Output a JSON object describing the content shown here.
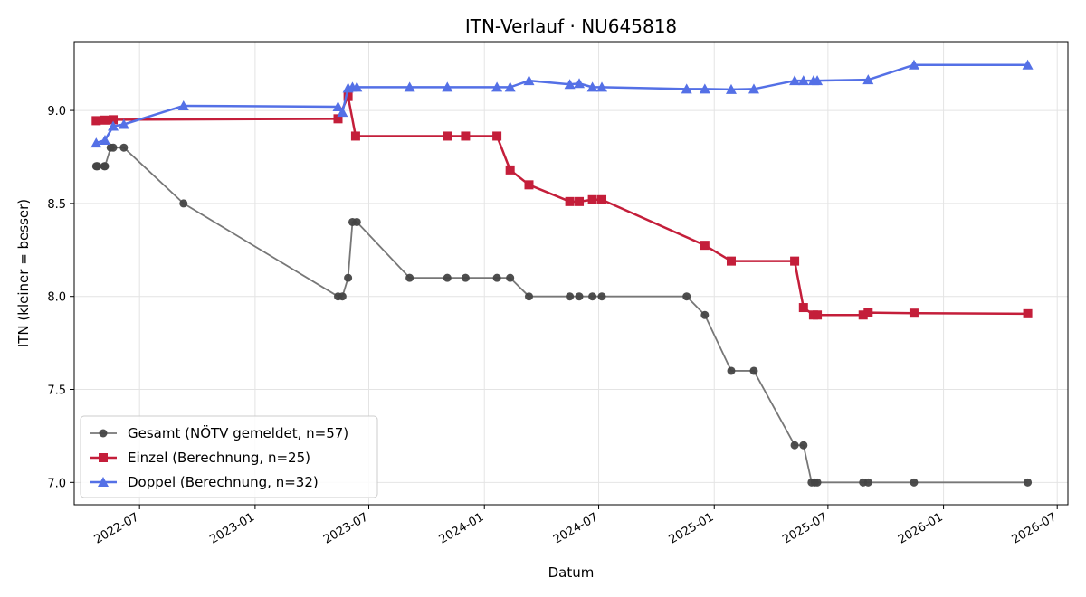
{
  "chart_data": {
    "type": "line",
    "title": "ITN-Verlauf · NU645818",
    "xlabel": "Datum",
    "ylabel": "ITN  (kleiner = besser)",
    "xlim": [
      "2022-03-19",
      "2026-07-18"
    ],
    "ylim": [
      6.88,
      9.37
    ],
    "x_ticks": [
      {
        "date": "2022-07-01",
        "label": "2022-07"
      },
      {
        "date": "2023-01-01",
        "label": "2023-01"
      },
      {
        "date": "2023-07-01",
        "label": "2023-07"
      },
      {
        "date": "2024-01-01",
        "label": "2024-01"
      },
      {
        "date": "2024-07-01",
        "label": "2024-07"
      },
      {
        "date": "2025-01-01",
        "label": "2025-01"
      },
      {
        "date": "2025-07-01",
        "label": "2025-07"
      },
      {
        "date": "2026-01-01",
        "label": "2026-01"
      },
      {
        "date": "2026-07-01",
        "label": "2026-07"
      }
    ],
    "y_ticks": [
      {
        "value": 7.0,
        "label": "7.0"
      },
      {
        "value": 7.5,
        "label": "7.5"
      },
      {
        "value": 8.0,
        "label": "8.0"
      },
      {
        "value": 8.5,
        "label": "8.5"
      },
      {
        "value": 9.0,
        "label": "9.0"
      }
    ],
    "grid": true,
    "legend_position": "bottom-left",
    "series": [
      {
        "name": "Gesamt (NÖTV gemeldet, n=57)",
        "color": "#444444",
        "line_color": "#777777",
        "marker": "circle",
        "points": [
          [
            "2022-04-23",
            8.7
          ],
          [
            "2022-04-24",
            8.7
          ],
          [
            "2022-04-25",
            8.7
          ],
          [
            "2022-05-06",
            8.7
          ],
          [
            "2022-05-07",
            8.7
          ],
          [
            "2022-05-16",
            8.8
          ],
          [
            "2022-05-20",
            8.8
          ],
          [
            "2022-06-06",
            8.8
          ],
          [
            "2022-09-09",
            8.5
          ],
          [
            "2023-05-13",
            8.0
          ],
          [
            "2023-05-20",
            8.0
          ],
          [
            "2023-05-29",
            8.1
          ],
          [
            "2023-06-05",
            8.4
          ],
          [
            "2023-06-12",
            8.4
          ],
          [
            "2023-09-04",
            8.1
          ],
          [
            "2023-11-03",
            8.1
          ],
          [
            "2023-12-02",
            8.1
          ],
          [
            "2024-01-21",
            8.1
          ],
          [
            "2024-02-11",
            8.1
          ],
          [
            "2024-03-12",
            8.0
          ],
          [
            "2024-05-16",
            8.0
          ],
          [
            "2024-05-31",
            8.0
          ],
          [
            "2024-06-21",
            8.0
          ],
          [
            "2024-07-06",
            8.0
          ],
          [
            "2024-11-18",
            8.0
          ],
          [
            "2024-12-17",
            7.9
          ],
          [
            "2025-01-28",
            7.6
          ],
          [
            "2025-03-05",
            7.6
          ],
          [
            "2025-05-09",
            7.2
          ],
          [
            "2025-05-23",
            7.2
          ],
          [
            "2025-06-05",
            7.0
          ],
          [
            "2025-06-10",
            7.0
          ],
          [
            "2025-06-14",
            7.0
          ],
          [
            "2025-08-26",
            7.0
          ],
          [
            "2025-09-03",
            7.0
          ],
          [
            "2025-11-15",
            7.0
          ],
          [
            "2026-05-15",
            7.0
          ]
        ]
      },
      {
        "name": "Einzel (Berechnung, n=25)",
        "color": "#c41e3a",
        "line_color": "#c41e3a",
        "marker": "square",
        "points": [
          [
            "2022-04-23",
            8.945
          ],
          [
            "2022-05-07",
            8.948
          ],
          [
            "2022-05-20",
            8.95
          ],
          [
            "2023-05-13",
            8.955
          ],
          [
            "2023-05-29",
            9.075
          ],
          [
            "2023-06-10",
            8.862
          ],
          [
            "2023-11-03",
            8.862
          ],
          [
            "2023-12-02",
            8.862
          ],
          [
            "2024-01-21",
            8.862
          ],
          [
            "2024-02-11",
            8.68
          ],
          [
            "2024-03-12",
            8.6
          ],
          [
            "2024-05-16",
            8.51
          ],
          [
            "2024-05-31",
            8.51
          ],
          [
            "2024-06-21",
            8.52
          ],
          [
            "2024-07-06",
            8.52
          ],
          [
            "2024-12-17",
            8.275
          ],
          [
            "2025-01-28",
            8.19
          ],
          [
            "2025-05-09",
            8.19
          ],
          [
            "2025-05-23",
            7.94
          ],
          [
            "2025-06-08",
            7.9
          ],
          [
            "2025-06-14",
            7.9
          ],
          [
            "2025-08-26",
            7.9
          ],
          [
            "2025-09-03",
            7.913
          ],
          [
            "2025-11-15",
            7.91
          ],
          [
            "2026-05-15",
            7.907
          ]
        ]
      },
      {
        "name": "Doppel (Berechnung, n=32)",
        "color": "#5470e6",
        "line_color": "#5470e6",
        "marker": "triangle",
        "points": [
          [
            "2022-04-23",
            8.825
          ],
          [
            "2022-05-07",
            8.84
          ],
          [
            "2022-05-20",
            8.915
          ],
          [
            "2022-06-06",
            8.925
          ],
          [
            "2022-09-09",
            9.025
          ],
          [
            "2023-05-13",
            9.02
          ],
          [
            "2023-05-20",
            8.99
          ],
          [
            "2023-05-29",
            9.12
          ],
          [
            "2023-06-05",
            9.125
          ],
          [
            "2023-06-12",
            9.125
          ],
          [
            "2023-09-04",
            9.125
          ],
          [
            "2023-11-03",
            9.125
          ],
          [
            "2024-01-21",
            9.125
          ],
          [
            "2024-02-11",
            9.125
          ],
          [
            "2024-03-12",
            9.16
          ],
          [
            "2024-05-16",
            9.14
          ],
          [
            "2024-05-31",
            9.145
          ],
          [
            "2024-06-21",
            9.125
          ],
          [
            "2024-07-06",
            9.125
          ],
          [
            "2024-11-18",
            9.115
          ],
          [
            "2024-12-17",
            9.115
          ],
          [
            "2025-01-28",
            9.113
          ],
          [
            "2025-03-05",
            9.115
          ],
          [
            "2025-05-09",
            9.16
          ],
          [
            "2025-05-23",
            9.16
          ],
          [
            "2025-06-08",
            9.16
          ],
          [
            "2025-06-14",
            9.16
          ],
          [
            "2025-09-03",
            9.165
          ],
          [
            "2025-11-15",
            9.245
          ],
          [
            "2026-05-15",
            9.245
          ]
        ]
      }
    ]
  }
}
